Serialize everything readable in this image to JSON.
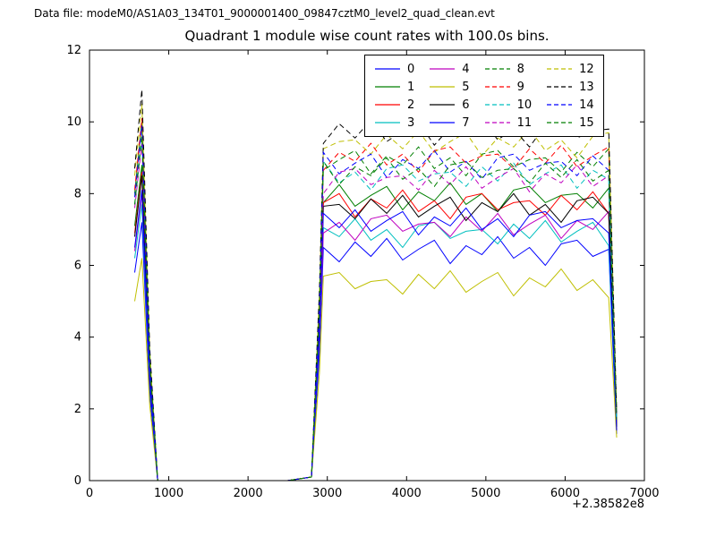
{
  "header": {
    "datafile_label": "Data file: modeM0/AS1A03_134T01_9000001400_09847cztM0_level2_quad_clean.evt",
    "title": "Quadrant 1 module wise count rates with 100.0s bins."
  },
  "axis": {
    "x_offset_label": "+2.38582e8"
  },
  "chart_data": {
    "type": "line",
    "title": "Quadrant 1 module wise count rates with 100.0s bins.",
    "xlabel": "",
    "ylabel": "",
    "xlim": [
      0,
      7000
    ],
    "ylim": [
      0,
      12
    ],
    "xticks": [
      0,
      1000,
      2000,
      3000,
      4000,
      5000,
      6000,
      7000
    ],
    "yticks": [
      0,
      2,
      4,
      6,
      8,
      10,
      12
    ],
    "x_axis_offset": "+2.38582e8",
    "grid": false,
    "legend_position": "upper right",
    "legend_columns": 4,
    "x": [
      570,
      660,
      760,
      860,
      950,
      1500,
      2000,
      2500,
      2800,
      2900,
      2950,
      3150,
      3350,
      3550,
      3750,
      3950,
      4150,
      4350,
      4550,
      4750,
      4950,
      5150,
      5350,
      5550,
      5750,
      5950,
      6150,
      6350,
      6550,
      6650
    ],
    "series": [
      {
        "name": "0",
        "color": "#0000ff",
        "style": "solid",
        "values": [
          5.8,
          7.2,
          2.4,
          0,
          0,
          0,
          0,
          0,
          0.1,
          3.5,
          6.5,
          6.1,
          6.65,
          6.25,
          6.75,
          6.15,
          6.45,
          6.7,
          6.05,
          6.55,
          6.3,
          6.8,
          6.2,
          6.5,
          6.0,
          6.6,
          6.7,
          6.25,
          6.45,
          1.3
        ]
      },
      {
        "name": "1",
        "color": "#007f00",
        "style": "solid",
        "values": [
          7.1,
          8.8,
          3.0,
          0,
          0,
          0,
          0,
          0,
          0.1,
          4.3,
          7.75,
          8.25,
          7.65,
          7.95,
          8.2,
          7.55,
          8.05,
          7.8,
          8.3,
          7.7,
          8.0,
          7.5,
          8.1,
          8.2,
          7.75,
          7.95,
          8.0,
          7.6,
          8.15,
          1.6
        ]
      },
      {
        "name": "2",
        "color": "#ff0000",
        "style": "solid",
        "values": [
          6.9,
          8.6,
          2.9,
          0,
          0,
          0,
          0,
          0,
          0.1,
          4.2,
          7.75,
          8.0,
          7.35,
          7.85,
          7.6,
          8.1,
          7.5,
          7.8,
          7.3,
          7.9,
          8.0,
          7.55,
          7.75,
          7.8,
          7.4,
          7.95,
          7.55,
          8.05,
          7.45,
          1.5
        ]
      },
      {
        "name": "3",
        "color": "#00bfbf",
        "style": "solid",
        "values": [
          6.2,
          7.7,
          2.6,
          0,
          0,
          0,
          0,
          0,
          0.1,
          3.8,
          7.05,
          6.8,
          7.3,
          6.7,
          7.0,
          6.5,
          7.1,
          7.2,
          6.75,
          6.95,
          7.0,
          6.6,
          7.15,
          6.75,
          7.25,
          6.65,
          6.95,
          7.2,
          6.55,
          1.4
        ]
      },
      {
        "name": "4",
        "color": "#bf00bf",
        "style": "solid",
        "values": [
          6.4,
          8.0,
          2.7,
          0,
          0,
          0,
          0,
          0,
          0.1,
          3.9,
          6.9,
          7.2,
          6.7,
          7.3,
          7.4,
          6.95,
          7.15,
          7.2,
          6.8,
          7.35,
          6.95,
          7.45,
          6.85,
          7.15,
          7.4,
          6.75,
          7.25,
          7.0,
          7.5,
          1.4
        ]
      },
      {
        "name": "5",
        "color": "#bfbf00",
        "style": "solid",
        "values": [
          5.0,
          6.2,
          2.1,
          0,
          0,
          0,
          0,
          0,
          0.1,
          3.0,
          5.7,
          5.8,
          5.35,
          5.55,
          5.6,
          5.2,
          5.75,
          5.35,
          5.85,
          5.25,
          5.55,
          5.8,
          5.15,
          5.65,
          5.4,
          5.9,
          5.3,
          5.6,
          5.1,
          1.2
        ]
      },
      {
        "name": "6",
        "color": "#000000",
        "style": "solid",
        "values": [
          6.8,
          8.5,
          2.9,
          0,
          0,
          0,
          0,
          0,
          0.1,
          4.2,
          7.65,
          7.7,
          7.3,
          7.85,
          7.45,
          7.95,
          7.35,
          7.65,
          7.9,
          7.25,
          7.75,
          7.5,
          8.0,
          7.4,
          7.7,
          7.2,
          7.8,
          7.9,
          7.45,
          1.5
        ]
      },
      {
        "name": "7",
        "color": "#0000ff",
        "style": "solid",
        "values": [
          6.5,
          8.1,
          2.7,
          0,
          0,
          0,
          0,
          0,
          0.1,
          4.0,
          7.45,
          7.05,
          7.55,
          6.95,
          7.25,
          7.5,
          6.85,
          7.35,
          7.1,
          7.6,
          7.0,
          7.3,
          6.8,
          7.4,
          7.5,
          7.05,
          7.25,
          7.3,
          6.9,
          1.4
        ]
      },
      {
        "name": "8",
        "color": "#007f00",
        "style": "dashed",
        "values": [
          8.0,
          10.0,
          3.4,
          0,
          0,
          0,
          0,
          0,
          0.1,
          4.9,
          8.65,
          8.95,
          9.2,
          8.55,
          9.05,
          8.8,
          9.3,
          8.7,
          9.0,
          8.5,
          9.1,
          9.2,
          8.75,
          8.95,
          9.0,
          8.6,
          9.15,
          8.75,
          9.25,
          1.8
        ]
      },
      {
        "name": "9",
        "color": "#ff0000",
        "style": "dashed",
        "values": [
          8.1,
          10.1,
          3.4,
          0,
          0,
          0,
          0,
          0,
          0.1,
          5.0,
          8.65,
          9.15,
          8.9,
          9.4,
          8.8,
          9.1,
          8.6,
          9.2,
          9.3,
          8.85,
          9.05,
          9.1,
          8.7,
          9.25,
          8.85,
          9.35,
          8.75,
          9.05,
          9.3,
          1.8
        ]
      },
      {
        "name": "10",
        "color": "#00bfbf",
        "style": "dashed",
        "values": [
          7.7,
          9.5,
          3.2,
          0,
          0,
          0,
          0,
          0,
          0.1,
          4.7,
          8.9,
          8.3,
          8.6,
          8.1,
          8.7,
          8.8,
          8.35,
          8.55,
          8.6,
          8.2,
          8.75,
          8.35,
          8.85,
          8.25,
          8.55,
          8.8,
          8.15,
          8.65,
          8.4,
          1.7
        ]
      },
      {
        "name": "11",
        "color": "#bf00bf",
        "style": "dashed",
        "values": [
          7.6,
          9.4,
          3.2,
          0,
          0,
          0,
          0,
          0,
          0.1,
          4.6,
          8.0,
          8.6,
          8.7,
          8.25,
          8.45,
          8.5,
          8.1,
          8.65,
          8.25,
          8.75,
          8.15,
          8.45,
          8.7,
          8.05,
          8.55,
          8.3,
          8.8,
          8.2,
          8.5,
          1.7
        ]
      },
      {
        "name": "12",
        "color": "#bfbf00",
        "style": "dashed",
        "values": [
          8.5,
          10.5,
          3.6,
          0,
          0,
          0,
          0,
          0,
          0.1,
          5.2,
          9.25,
          9.45,
          9.5,
          9.1,
          9.65,
          9.25,
          9.75,
          9.15,
          9.45,
          9.7,
          9.05,
          9.55,
          9.3,
          9.8,
          9.2,
          9.5,
          9.0,
          9.6,
          9.7,
          1.9
        ]
      },
      {
        "name": "13",
        "color": "#000000",
        "style": "dashed",
        "values": [
          8.7,
          10.9,
          3.7,
          0,
          0,
          0,
          0,
          0,
          0.1,
          5.3,
          9.4,
          9.95,
          9.55,
          10.05,
          9.45,
          9.75,
          10.0,
          9.35,
          9.85,
          9.6,
          10.1,
          9.5,
          9.8,
          9.3,
          9.9,
          10.0,
          9.55,
          9.75,
          9.8,
          1.9
        ]
      },
      {
        "name": "14",
        "color": "#0000ff",
        "style": "dashed",
        "values": [
          7.9,
          9.9,
          3.3,
          0,
          0,
          0,
          0,
          0,
          0.1,
          4.8,
          9.15,
          8.55,
          8.85,
          9.1,
          8.45,
          8.95,
          8.7,
          9.2,
          8.6,
          8.9,
          8.4,
          9.0,
          9.1,
          8.65,
          8.85,
          8.9,
          8.5,
          9.05,
          8.65,
          1.8
        ]
      },
      {
        "name": "15",
        "color": "#007f00",
        "style": "dashed",
        "values": [
          7.7,
          9.6,
          3.3,
          0,
          0,
          0,
          0,
          0,
          0.1,
          4.7,
          8.9,
          8.25,
          8.75,
          8.5,
          9.0,
          8.4,
          8.7,
          8.2,
          8.8,
          8.9,
          8.45,
          8.65,
          8.7,
          8.3,
          8.85,
          8.45,
          8.95,
          8.35,
          8.65,
          1.7
        ]
      }
    ]
  }
}
